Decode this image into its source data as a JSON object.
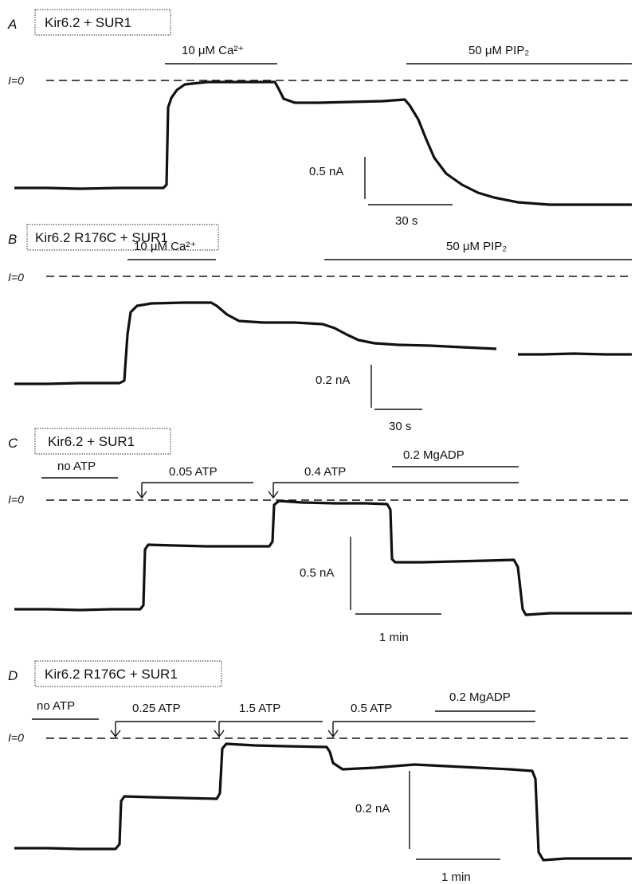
{
  "panels": [
    {
      "letter": "A",
      "title": "Kir6.2 + SUR1",
      "izero": "I=0",
      "bars": [
        {
          "label": "10 μM Ca²⁺"
        },
        {
          "label": "50 μM PIP₂"
        }
      ],
      "scale": {
        "y_label": "0.5 nA",
        "x_label": "30 s"
      }
    },
    {
      "letter": "B",
      "title": "Kir6.2 R176C + SUR1",
      "izero": "I=0",
      "bars": [
        {
          "label": "10 μM Ca²⁺"
        },
        {
          "label": "50 μM PIP₂"
        }
      ],
      "scale": {
        "y_label": "0.2 nA",
        "x_label": "30 s"
      }
    },
    {
      "letter": "C",
      "title": "Kir6.2 + SUR1",
      "izero": "I=0",
      "bars": [
        {
          "label": "no ATP"
        },
        {
          "label": "0.05 ATP"
        },
        {
          "label": "0.4 ATP"
        },
        {
          "label": "0.2 MgADP"
        }
      ],
      "scale": {
        "y_label": "0.5 nA",
        "x_label": "1 min"
      }
    },
    {
      "letter": "D",
      "title": "Kir6.2 R176C + SUR1",
      "izero": "I=0",
      "bars": [
        {
          "label": "no ATP"
        },
        {
          "label": "0.25 ATP"
        },
        {
          "label": "1.5 ATP"
        },
        {
          "label": "0.5 ATP"
        },
        {
          "label": "0.2 MgADP"
        }
      ],
      "scale": {
        "y_label": "0.2 nA",
        "x_label": "1 min"
      }
    }
  ]
}
